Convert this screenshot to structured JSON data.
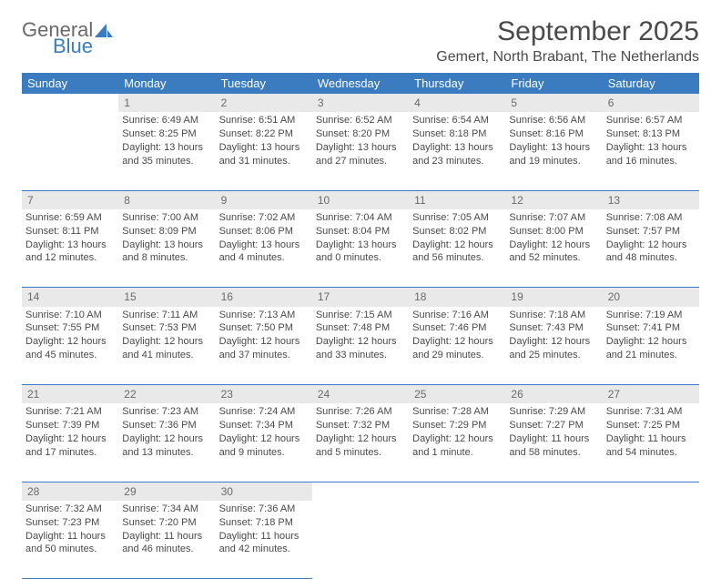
{
  "logo": {
    "word1": "General",
    "word2": "Blue"
  },
  "title": "September 2025",
  "location": "Gemert, North Brabant, The Netherlands",
  "colors": {
    "header_bg": "#3b7bbf",
    "header_text": "#ffffff",
    "daynum_bg": "#e9e9e9",
    "text": "#4a4a4a",
    "logo_blue": "#3b7bbf"
  },
  "weekdays": [
    "Sunday",
    "Monday",
    "Tuesday",
    "Wednesday",
    "Thursday",
    "Friday",
    "Saturday"
  ],
  "weeks": [
    {
      "nums": [
        "",
        "1",
        "2",
        "3",
        "4",
        "5",
        "6"
      ],
      "cells": [
        null,
        {
          "sunrise": "Sunrise: 6:49 AM",
          "sunset": "Sunset: 8:25 PM",
          "daylight": "Daylight: 13 hours and 35 minutes."
        },
        {
          "sunrise": "Sunrise: 6:51 AM",
          "sunset": "Sunset: 8:22 PM",
          "daylight": "Daylight: 13 hours and 31 minutes."
        },
        {
          "sunrise": "Sunrise: 6:52 AM",
          "sunset": "Sunset: 8:20 PM",
          "daylight": "Daylight: 13 hours and 27 minutes."
        },
        {
          "sunrise": "Sunrise: 6:54 AM",
          "sunset": "Sunset: 8:18 PM",
          "daylight": "Daylight: 13 hours and 23 minutes."
        },
        {
          "sunrise": "Sunrise: 6:56 AM",
          "sunset": "Sunset: 8:16 PM",
          "daylight": "Daylight: 13 hours and 19 minutes."
        },
        {
          "sunrise": "Sunrise: 6:57 AM",
          "sunset": "Sunset: 8:13 PM",
          "daylight": "Daylight: 13 hours and 16 minutes."
        }
      ]
    },
    {
      "nums": [
        "7",
        "8",
        "9",
        "10",
        "11",
        "12",
        "13"
      ],
      "cells": [
        {
          "sunrise": "Sunrise: 6:59 AM",
          "sunset": "Sunset: 8:11 PM",
          "daylight": "Daylight: 13 hours and 12 minutes."
        },
        {
          "sunrise": "Sunrise: 7:00 AM",
          "sunset": "Sunset: 8:09 PM",
          "daylight": "Daylight: 13 hours and 8 minutes."
        },
        {
          "sunrise": "Sunrise: 7:02 AM",
          "sunset": "Sunset: 8:06 PM",
          "daylight": "Daylight: 13 hours and 4 minutes."
        },
        {
          "sunrise": "Sunrise: 7:04 AM",
          "sunset": "Sunset: 8:04 PM",
          "daylight": "Daylight: 13 hours and 0 minutes."
        },
        {
          "sunrise": "Sunrise: 7:05 AM",
          "sunset": "Sunset: 8:02 PM",
          "daylight": "Daylight: 12 hours and 56 minutes."
        },
        {
          "sunrise": "Sunrise: 7:07 AM",
          "sunset": "Sunset: 8:00 PM",
          "daylight": "Daylight: 12 hours and 52 minutes."
        },
        {
          "sunrise": "Sunrise: 7:08 AM",
          "sunset": "Sunset: 7:57 PM",
          "daylight": "Daylight: 12 hours and 48 minutes."
        }
      ]
    },
    {
      "nums": [
        "14",
        "15",
        "16",
        "17",
        "18",
        "19",
        "20"
      ],
      "cells": [
        {
          "sunrise": "Sunrise: 7:10 AM",
          "sunset": "Sunset: 7:55 PM",
          "daylight": "Daylight: 12 hours and 45 minutes."
        },
        {
          "sunrise": "Sunrise: 7:11 AM",
          "sunset": "Sunset: 7:53 PM",
          "daylight": "Daylight: 12 hours and 41 minutes."
        },
        {
          "sunrise": "Sunrise: 7:13 AM",
          "sunset": "Sunset: 7:50 PM",
          "daylight": "Daylight: 12 hours and 37 minutes."
        },
        {
          "sunrise": "Sunrise: 7:15 AM",
          "sunset": "Sunset: 7:48 PM",
          "daylight": "Daylight: 12 hours and 33 minutes."
        },
        {
          "sunrise": "Sunrise: 7:16 AM",
          "sunset": "Sunset: 7:46 PM",
          "daylight": "Daylight: 12 hours and 29 minutes."
        },
        {
          "sunrise": "Sunrise: 7:18 AM",
          "sunset": "Sunset: 7:43 PM",
          "daylight": "Daylight: 12 hours and 25 minutes."
        },
        {
          "sunrise": "Sunrise: 7:19 AM",
          "sunset": "Sunset: 7:41 PM",
          "daylight": "Daylight: 12 hours and 21 minutes."
        }
      ]
    },
    {
      "nums": [
        "21",
        "22",
        "23",
        "24",
        "25",
        "26",
        "27"
      ],
      "cells": [
        {
          "sunrise": "Sunrise: 7:21 AM",
          "sunset": "Sunset: 7:39 PM",
          "daylight": "Daylight: 12 hours and 17 minutes."
        },
        {
          "sunrise": "Sunrise: 7:23 AM",
          "sunset": "Sunset: 7:36 PM",
          "daylight": "Daylight: 12 hours and 13 minutes."
        },
        {
          "sunrise": "Sunrise: 7:24 AM",
          "sunset": "Sunset: 7:34 PM",
          "daylight": "Daylight: 12 hours and 9 minutes."
        },
        {
          "sunrise": "Sunrise: 7:26 AM",
          "sunset": "Sunset: 7:32 PM",
          "daylight": "Daylight: 12 hours and 5 minutes."
        },
        {
          "sunrise": "Sunrise: 7:28 AM",
          "sunset": "Sunset: 7:29 PM",
          "daylight": "Daylight: 12 hours and 1 minute."
        },
        {
          "sunrise": "Sunrise: 7:29 AM",
          "sunset": "Sunset: 7:27 PM",
          "daylight": "Daylight: 11 hours and 58 minutes."
        },
        {
          "sunrise": "Sunrise: 7:31 AM",
          "sunset": "Sunset: 7:25 PM",
          "daylight": "Daylight: 11 hours and 54 minutes."
        }
      ]
    },
    {
      "nums": [
        "28",
        "29",
        "30",
        "",
        "",
        "",
        ""
      ],
      "cells": [
        {
          "sunrise": "Sunrise: 7:32 AM",
          "sunset": "Sunset: 7:23 PM",
          "daylight": "Daylight: 11 hours and 50 minutes."
        },
        {
          "sunrise": "Sunrise: 7:34 AM",
          "sunset": "Sunset: 7:20 PM",
          "daylight": "Daylight: 11 hours and 46 minutes."
        },
        {
          "sunrise": "Sunrise: 7:36 AM",
          "sunset": "Sunset: 7:18 PM",
          "daylight": "Daylight: 11 hours and 42 minutes."
        },
        null,
        null,
        null,
        null
      ]
    }
  ]
}
